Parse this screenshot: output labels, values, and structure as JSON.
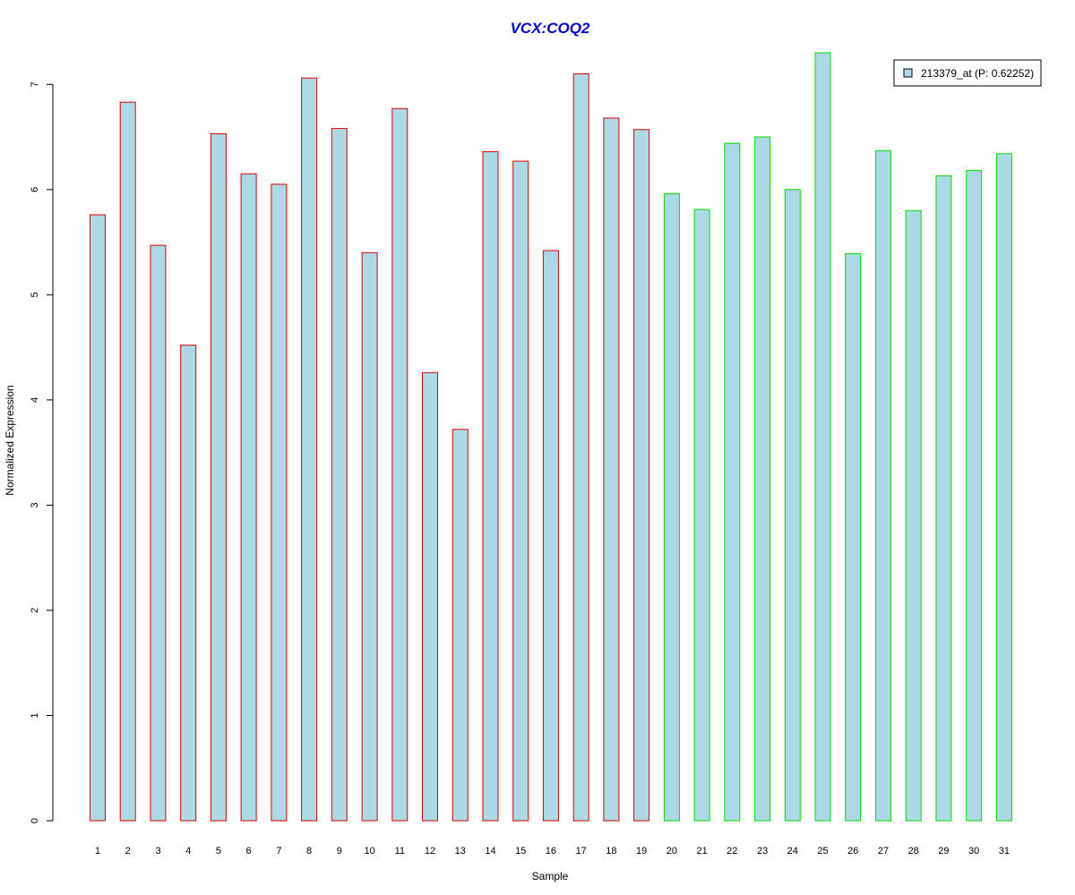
{
  "chart_data": {
    "type": "bar",
    "title": "VCX:COQ2",
    "title_color": "#0000CC",
    "xlabel": "Sample",
    "ylabel": "Normalized Expression",
    "ylim": [
      0,
      7.3
    ],
    "yticks": [
      0,
      1,
      2,
      3,
      4,
      5,
      6,
      7
    ],
    "grid": false,
    "legend_position": "top-right",
    "categories": [
      "1",
      "2",
      "3",
      "4",
      "5",
      "6",
      "7",
      "8",
      "9",
      "10",
      "11",
      "12",
      "13",
      "14",
      "15",
      "16",
      "17",
      "18",
      "19",
      "20",
      "21",
      "22",
      "23",
      "24",
      "25",
      "26",
      "27",
      "28",
      "29",
      "30",
      "31"
    ],
    "series": [
      {
        "name": "213379_at (P: 0.62252)",
        "fill": "#ADD8E6",
        "values": [
          5.76,
          6.83,
          5.47,
          4.52,
          6.53,
          6.15,
          6.05,
          7.06,
          6.58,
          5.4,
          6.77,
          4.26,
          3.72,
          6.36,
          6.27,
          5.42,
          7.1,
          6.68,
          6.57,
          5.96,
          5.81,
          6.44,
          6.5,
          6.0,
          7.3,
          5.39,
          6.37,
          5.8,
          6.13,
          6.18,
          6.34
        ]
      }
    ],
    "group_border_colors": [
      "#DD0000",
      "#DD0000",
      "#DD0000",
      "#DD0000",
      "#DD0000",
      "#DD0000",
      "#DD0000",
      "#DD0000",
      "#DD0000",
      "#DD0000",
      "#DD0000",
      "#DD0000",
      "#DD0000",
      "#DD0000",
      "#DD0000",
      "#DD0000",
      "#DD0000",
      "#DD0000",
      "#DD0000",
      "#00DD00",
      "#00DD00",
      "#00DD00",
      "#00DD00",
      "#00DD00",
      "#00DD00",
      "#00DD00",
      "#00DD00",
      "#00DD00",
      "#00DD00",
      "#00DD00",
      "#00DD00"
    ]
  }
}
